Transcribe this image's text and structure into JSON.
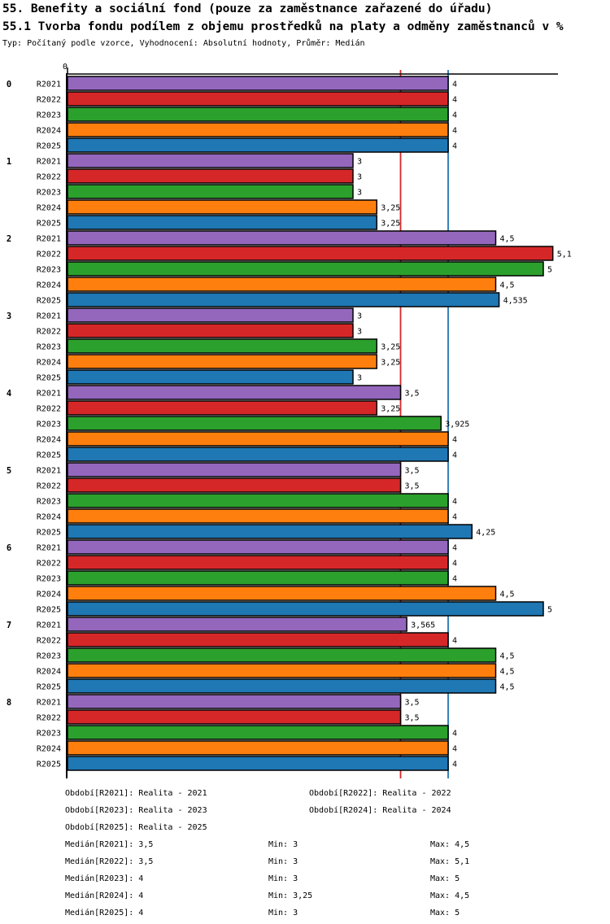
{
  "header": {
    "title": "55. Benefity a sociální fond (pouze za zaměstnance zařazené do úřadu)",
    "subtitle": "55.1 Tvorba fondu podílem z objemu prostředků na platy a odměny zaměstnanců v %",
    "meta": "Typ: Počítaný podle vzorce, Vyhodnocení: Absolutní hodnoty, Průměr: Medián"
  },
  "chart_data": {
    "type": "bar",
    "orientation": "horizontal",
    "title": "55.1 Tvorba fondu podílem z objemu prostředků na platy a odměny zaměstnanců v %",
    "categories": [
      "0",
      "1",
      "2",
      "3",
      "4",
      "5",
      "6",
      "7",
      "8"
    ],
    "series": [
      {
        "name": "R2021",
        "color": "#9467bd",
        "values": [
          4,
          3,
          4.5,
          3,
          3.5,
          3.5,
          4,
          3.565,
          3.5
        ]
      },
      {
        "name": "R2022",
        "color": "#d62728",
        "values": [
          4,
          3,
          5.1,
          3,
          3.25,
          3.5,
          4,
          4,
          3.5
        ]
      },
      {
        "name": "R2023",
        "color": "#2ca02c",
        "values": [
          4,
          3,
          5,
          3.25,
          3.925,
          4,
          4,
          4.5,
          4
        ]
      },
      {
        "name": "R2024",
        "color": "#ff7f0e",
        "values": [
          4,
          3.25,
          4.5,
          3.25,
          4,
          4,
          4.5,
          4.5,
          4
        ]
      },
      {
        "name": "R2025",
        "color": "#1f77b4",
        "values": [
          4,
          3.25,
          4.535,
          3,
          4,
          4.25,
          5,
          4.5,
          4
        ]
      }
    ],
    "xlim": [
      0,
      5.17
    ],
    "x_tick_labels": [
      {
        "value": 0,
        "label": "0"
      }
    ],
    "median_lines": [
      {
        "value": 3.5,
        "color": "#d62728"
      },
      {
        "value": 4,
        "color": "#1f77b4"
      }
    ],
    "grid": false,
    "value_labels": true,
    "decimal_separator": ",",
    "bar_border_color": "#000000"
  },
  "legend": {
    "periods": [
      {
        "label": "Období[R2021]: Realita - 2021"
      },
      {
        "label": "Období[R2022]: Realita - 2022"
      },
      {
        "label": "Období[R2023]: Realita - 2023"
      },
      {
        "label": "Období[R2024]: Realita - 2024"
      },
      {
        "label": "Období[R2025]: Realita - 2025"
      }
    ],
    "stats": [
      {
        "median": "Medián[R2021]: 3,5",
        "min": "Min: 3",
        "max": "Max: 4,5"
      },
      {
        "median": "Medián[R2022]: 3,5",
        "min": "Min: 3",
        "max": "Max: 5,1"
      },
      {
        "median": "Medián[R2023]: 4",
        "min": "Min: 3",
        "max": "Max: 5"
      },
      {
        "median": "Medián[R2024]: 4",
        "min": "Min: 3,25",
        "max": "Max: 4,5"
      },
      {
        "median": "Medián[R2025]: 4",
        "min": "Min: 3",
        "max": "Max: 5"
      }
    ]
  }
}
